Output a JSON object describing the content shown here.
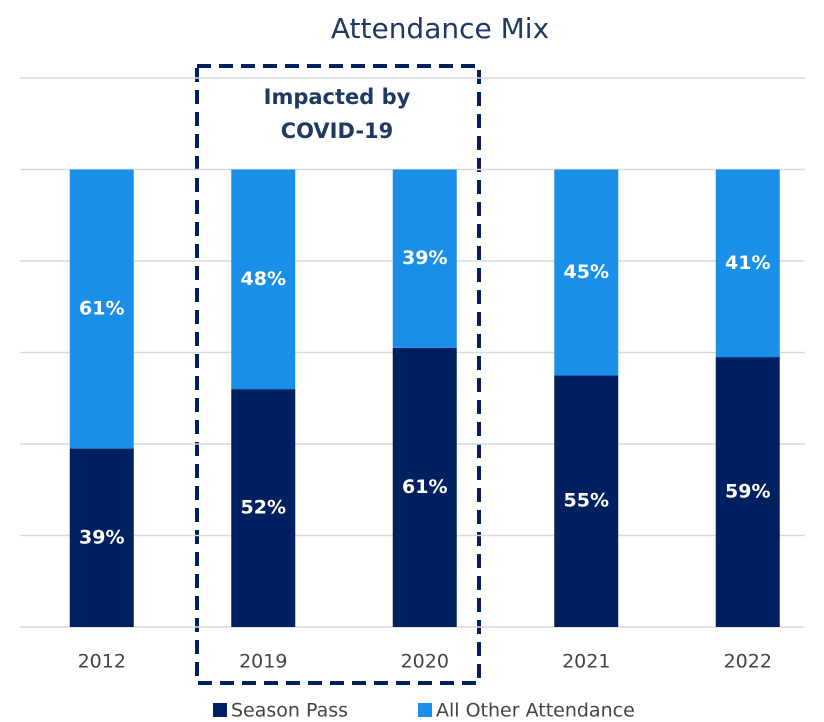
{
  "chart_data": {
    "type": "stacked_bar",
    "title": "Attendance Mix",
    "annotation": [
      "Impacted by",
      "COVID-19"
    ],
    "categories": [
      "2012",
      "2019",
      "2020",
      "2021",
      "2022"
    ],
    "series": [
      {
        "name": "Season Pass",
        "color": "#002060",
        "values": [
          39,
          52,
          61,
          55,
          59
        ],
        "value_labels": [
          "39%",
          "52%",
          "61%",
          "55%",
          "59%"
        ]
      },
      {
        "name": "All Other Attendance",
        "color": "#1a8fe8",
        "values": [
          61,
          48,
          39,
          45,
          41
        ],
        "value_labels": [
          "61%",
          "48%",
          "39%",
          "45%",
          "41%"
        ]
      }
    ],
    "ylim": [
      0,
      120
    ],
    "yticks": [
      0,
      20,
      40,
      60,
      80,
      100,
      120
    ],
    "grid": true,
    "legend": "bottom"
  }
}
